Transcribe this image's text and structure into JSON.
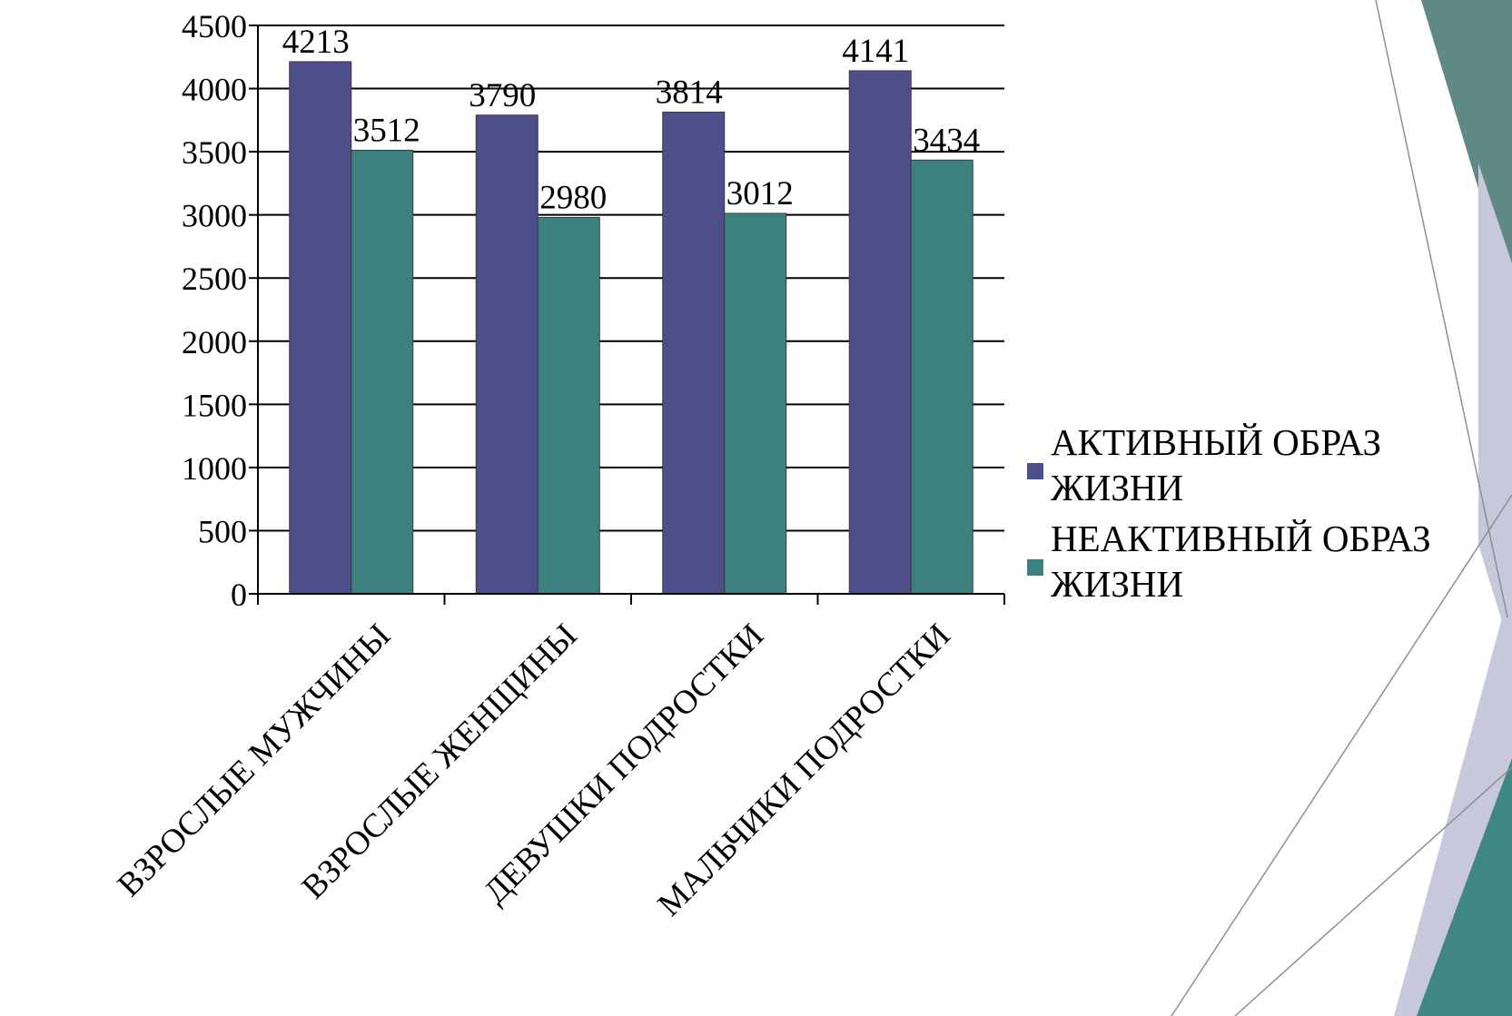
{
  "chart_data": {
    "type": "bar",
    "categories": [
      "ВЗРОСЛЫЕ МУЖЧИНЫ",
      "ВЗРОСЛЫЕ ЖЕНЩИНЫ",
      "ДЕВУШКИ ПОДРОСТКИ",
      "МАЛЬЧИКИ ПОДРОСТКИ"
    ],
    "series": [
      {
        "name": "АКТИВНЫЙ ОБРАЗ ЖИЗНИ",
        "values": [
          4213,
          3790,
          3814,
          4141
        ],
        "color": "#4e4e8a"
      },
      {
        "name": "НЕАКТИВНЫЙ ОБРАЗ ЖИЗНИ",
        "values": [
          3512,
          2980,
          3012,
          3434
        ],
        "color": "#3d8080"
      }
    ],
    "y_ticks": [
      "0",
      "500",
      "1000",
      "1500",
      "2000",
      "2500",
      "3000",
      "3500",
      "4000",
      "4500"
    ],
    "ylim": [
      0,
      4500
    ],
    "grid": true,
    "legend_position": "right",
    "title": "",
    "xlabel": "",
    "ylabel": ""
  },
  "theme": {
    "accent_dark": "#4f7f7b",
    "accent_light": "#c6c6dd",
    "accent_teal": "#3d8080",
    "outline": "#8f8f8f"
  }
}
